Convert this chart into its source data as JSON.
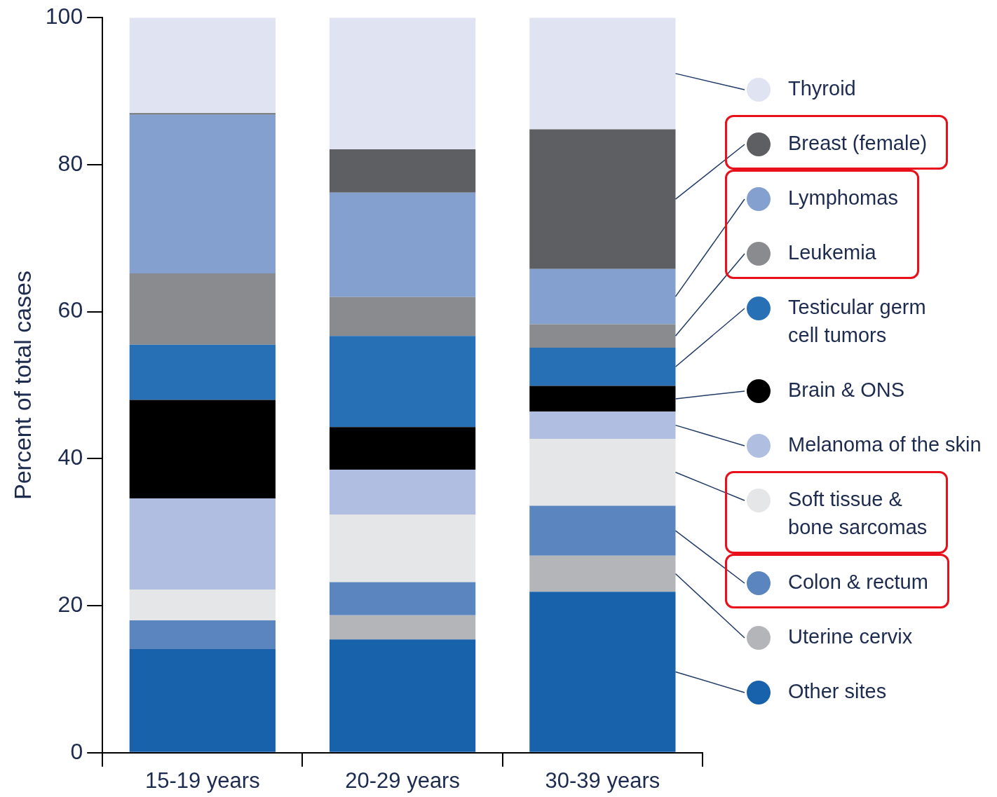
{
  "chart_data": {
    "type": "bar",
    "stacked": true,
    "ylabel": "Percent of total cases",
    "categories": [
      "15-19 years",
      "20-29 years",
      "30-39 years"
    ],
    "ylim": [
      0,
      100
    ],
    "yticks": [
      0,
      20,
      40,
      60,
      80,
      100
    ],
    "legend": "right",
    "series": [
      {
        "name": "Other sites",
        "color": "#1862ab",
        "values": [
          14.1,
          15.4,
          21.9
        ]
      },
      {
        "name": "Uterine cervix",
        "color": "#b4b5b8",
        "values": [
          0,
          3.3,
          4.9
        ]
      },
      {
        "name": "Colon & rectum",
        "color": "#5a85bf",
        "values": [
          3.9,
          4.5,
          6.8
        ]
      },
      {
        "name": "Soft tissue & bone sarcomas",
        "color": "#e5e6e8",
        "values": [
          4.2,
          9.2,
          9.1
        ]
      },
      {
        "name": "Melanoma of the skin",
        "color": "#b0bfe1",
        "values": [
          12.4,
          6.1,
          3.7
        ]
      },
      {
        "name": "Brain & ONS",
        "color": "#000000",
        "values": [
          13.4,
          5.8,
          3.5
        ]
      },
      {
        "name": "Testicular germ cell tumors",
        "color": "#2870b5",
        "values": [
          7.5,
          12.4,
          5.2
        ]
      },
      {
        "name": "Leukemia",
        "color": "#8a8b8e",
        "values": [
          9.7,
          5.3,
          3.2
        ]
      },
      {
        "name": "Lymphomas",
        "color": "#84a0cf",
        "values": [
          21.6,
          14.2,
          7.5
        ]
      },
      {
        "name": "Breast (female)",
        "color": "#5d5f62",
        "values": [
          0.2,
          5.9,
          19.0
        ]
      },
      {
        "name": "Thyroid",
        "color": "#e0e3f2",
        "values": [
          13.0,
          17.9,
          15.2
        ]
      }
    ]
  }
}
